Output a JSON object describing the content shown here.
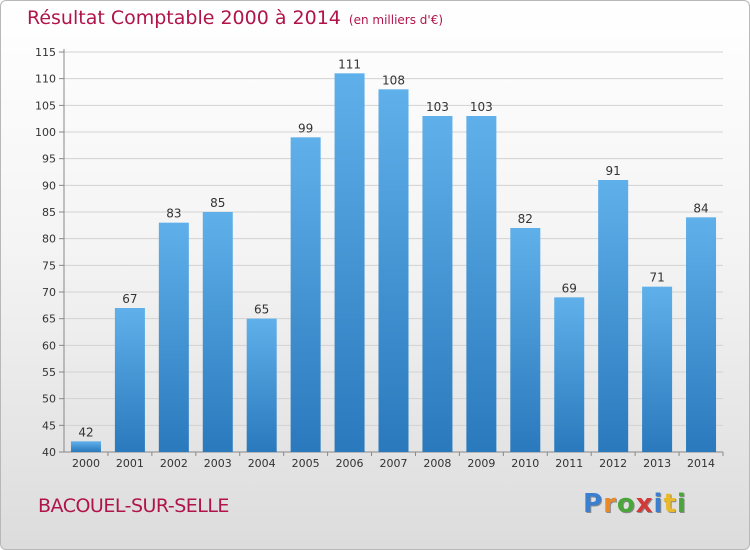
{
  "title": "Résultat Comptable 2000 à 2014",
  "subtitle": "(en milliers d'€)",
  "commune": "BACOUEL-SUR-SELLE",
  "logo": [
    "P",
    "r",
    "o",
    "x",
    "i",
    "t",
    "i"
  ],
  "logo_colors": [
    "#3a7fd0",
    "#e8892a",
    "#4aa53a",
    "#d23a3a",
    "#3a7fd0",
    "#e8b92a",
    "#4aa53a"
  ],
  "colors": {
    "bar_top": "#5fb0ea",
    "bar_bottom": "#2a79bd",
    "title": "#b0144a"
  },
  "chart_data": {
    "type": "bar",
    "title": "Résultat Comptable 2000 à 2014",
    "categories": [
      "2000",
      "2001",
      "2002",
      "2003",
      "2004",
      "2005",
      "2006",
      "2007",
      "2008",
      "2009",
      "2010",
      "2011",
      "2012",
      "2013",
      "2014"
    ],
    "values": [
      42,
      67,
      83,
      85,
      65,
      99,
      111,
      108,
      103,
      103,
      82,
      69,
      91,
      71,
      84
    ],
    "ylim": [
      40,
      115
    ],
    "yticks": [
      40,
      45,
      50,
      55,
      60,
      65,
      70,
      75,
      80,
      85,
      90,
      95,
      100,
      105,
      110,
      115
    ],
    "grid": true
  }
}
